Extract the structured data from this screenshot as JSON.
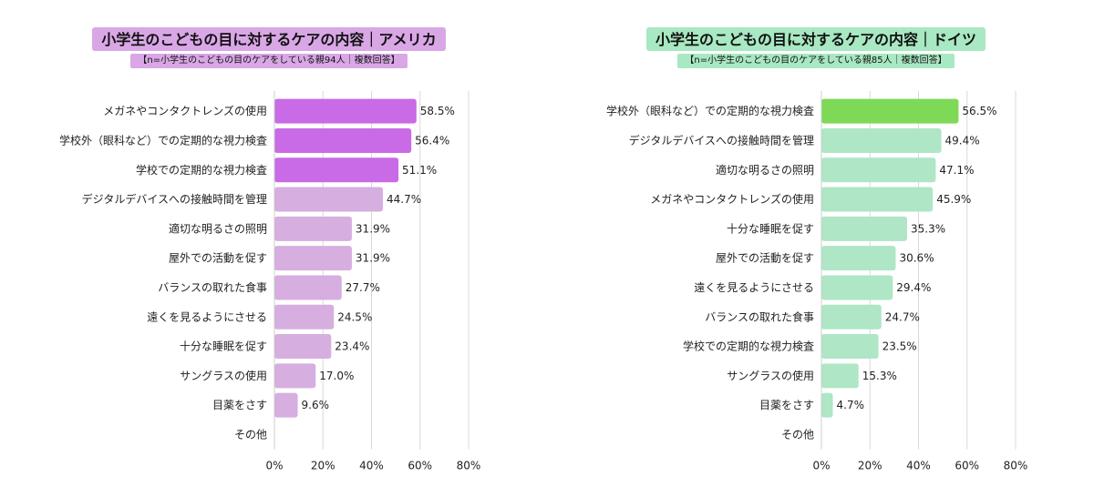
{
  "chart_data": [
    {
      "type": "bar",
      "orientation": "horizontal",
      "title": "小学生のこどもの目に対するケアの内容｜アメリカ",
      "subtitle": "【n=小学生のこどもの目のケアをしている親94人｜複数回答】",
      "categories": [
        "メガネやコンタクトレンズの使用",
        "学校外（眼科など）での定期的な視力検査",
        "学校での定期的な視力検査",
        "デジタルデバイスへの接触時間を管理",
        "適切な明るさの照明",
        "屋外での活動を促す",
        "バランスの取れた食事",
        "遠くを見るようにさせる",
        "十分な睡眠を促す",
        "サングラスの使用",
        "目薬をさす",
        "その他"
      ],
      "values": [
        58.5,
        56.4,
        51.1,
        44.7,
        31.9,
        31.9,
        27.7,
        24.5,
        23.4,
        17.0,
        9.6,
        0
      ],
      "value_labels": [
        "58.5%",
        "56.4%",
        "51.1%",
        "44.7%",
        "31.9%",
        "31.9%",
        "27.7%",
        "24.5%",
        "23.4%",
        "17.0%",
        "9.6%",
        ""
      ],
      "highlight_count": 3,
      "colors": {
        "highlight": "#c96ae6",
        "base": "#d6aee0"
      },
      "xlim": [
        0,
        80
      ],
      "xticks": [
        "0%",
        "20%",
        "40%",
        "60%",
        "80%"
      ],
      "xtick_values": [
        0,
        20,
        40,
        60,
        80
      ],
      "grid": true
    },
    {
      "type": "bar",
      "orientation": "horizontal",
      "title": "小学生のこどもの目に対するケアの内容｜ドイツ",
      "subtitle": "【n=小学生のこどもの目のケアをしている親85人｜複数回答】",
      "categories": [
        "学校外（眼科など）での定期的な視力検査",
        "デジタルデバイスへの接触時間を管理",
        "適切な明るさの照明",
        "メガネやコンタクトレンズの使用",
        "十分な睡眠を促す",
        "屋外での活動を促す",
        "遠くを見るようにさせる",
        "バランスの取れた食事",
        "学校での定期的な視力検査",
        "サングラスの使用",
        "目薬をさす",
        "その他"
      ],
      "values": [
        56.5,
        49.4,
        47.1,
        45.9,
        35.3,
        30.6,
        29.4,
        24.7,
        23.5,
        15.3,
        4.7,
        0
      ],
      "value_labels": [
        "56.5%",
        "49.4%",
        "47.1%",
        "45.9%",
        "35.3%",
        "30.6%",
        "29.4%",
        "24.7%",
        "23.5%",
        "15.3%",
        "4.7%",
        ""
      ],
      "highlight_count": 1,
      "colors": {
        "highlight": "#7ed957",
        "base": "#aee6c6"
      },
      "xlim": [
        0,
        80
      ],
      "xticks": [
        "0%",
        "20%",
        "40%",
        "60%",
        "80%"
      ],
      "xtick_values": [
        0,
        20,
        40,
        60,
        80
      ],
      "grid": true
    }
  ]
}
